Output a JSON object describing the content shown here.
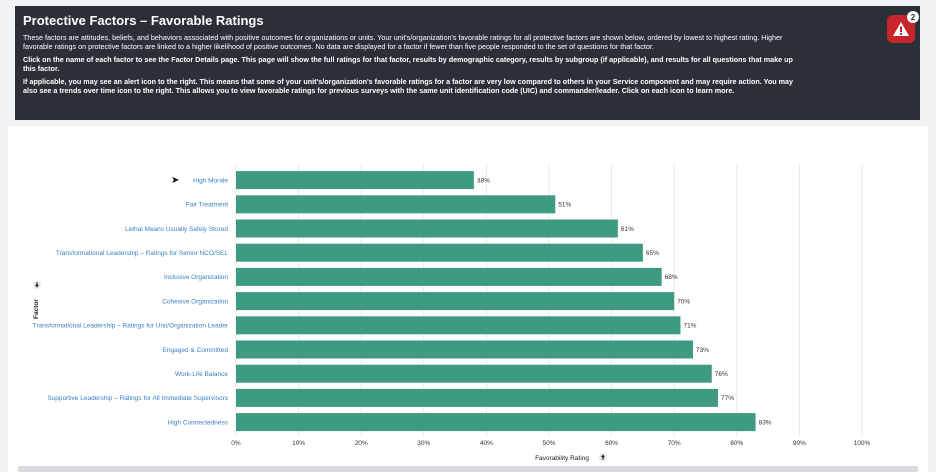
{
  "banner": {
    "title": "Protective Factors – Favorable Ratings",
    "para1": "These factors are attitudes, beliefs, and behaviors associated with positive outcomes for organizations or units. Your unit's/organization's favorable ratings for all protective factors are shown below, ordered by lowest to highest rating. Higher favorable ratings on protective factors are linked to a higher likelihood of positive outcomes. No data are displayed for a factor if fewer than five people responded to the set of questions for that factor.",
    "para2": "Click on the name of each factor to see the Factor Details page. This page will show the full ratings for that factor, results by demographic category, results by subgroup (if applicable), and results for all questions that make up this factor.",
    "para3": "If applicable, you may see an alert icon to the right. This means that some of your unit's/organization's favorable ratings for a factor are very low compared to others in your Service component and may require action. You may also see a trends over time icon to the right. This allows you to view favorable ratings for previous surveys with the same unit identification code (UIC) and commander/leader. Click on each icon to learn more.",
    "alert_count": "2",
    "alert_icon": "warning-triangle-icon"
  },
  "chart_data": {
    "type": "bar",
    "orientation": "horizontal",
    "categories": [
      "High Morale",
      "Fair Treatment",
      "Lethal Means Usually Safely Stored",
      "Transformational Leadership – Ratings for Senior NCO/SEL",
      "Inclusive Organization",
      "Cohesive Organization",
      "Transformational Leadership – Ratings for Unit/Organization Leader",
      "Engaged & Committed",
      "Work-Life Balance",
      "Supportive Leadership – Ratings for All Immediate Supervisors",
      "High Connectedness"
    ],
    "values": [
      38,
      51,
      61,
      65,
      68,
      70,
      71,
      73,
      76,
      77,
      83
    ],
    "value_labels": [
      "38%",
      "51%",
      "61%",
      "65%",
      "68%",
      "70%",
      "71%",
      "73%",
      "76%",
      "77%",
      "83%"
    ],
    "xlabel": "Favorability Rating",
    "ylabel": "Factor",
    "xlim": [
      0,
      100
    ],
    "xticks": [
      "0%",
      "10%",
      "20%",
      "30%",
      "40%",
      "50%",
      "60%",
      "70%",
      "80%",
      "90%",
      "100%"
    ],
    "grid": true,
    "bar_color": "#3f9a82",
    "label_color": "#3b7fc4"
  }
}
